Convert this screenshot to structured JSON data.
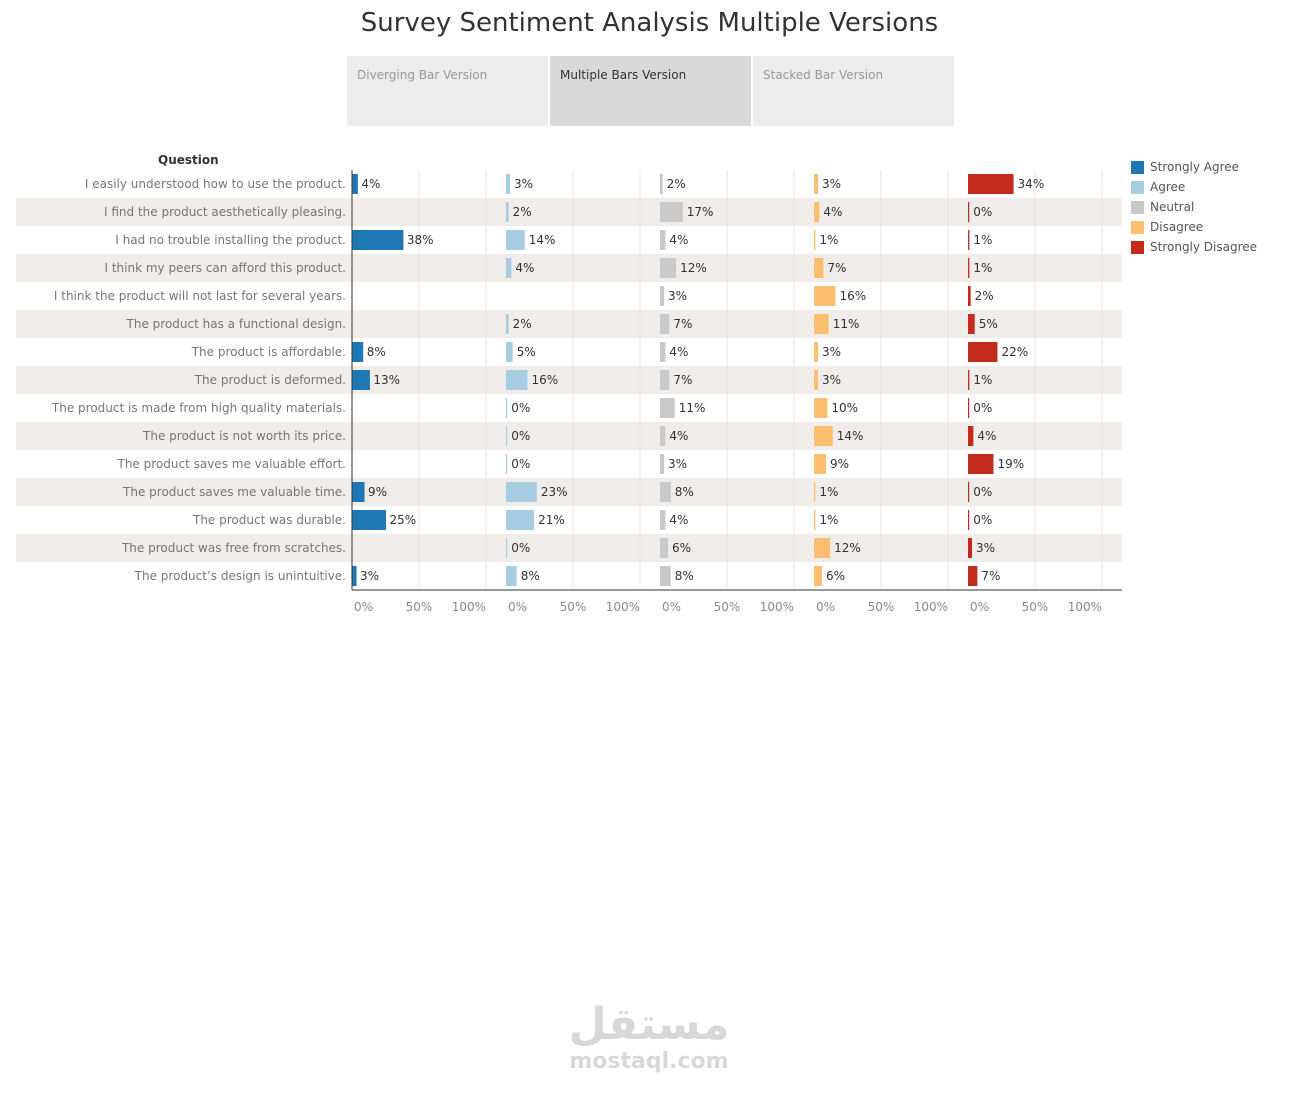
{
  "page": {
    "title": "Survey Sentiment Analysis Multiple Versions",
    "tabs": [
      {
        "label": "Diverging Bar Version",
        "active": false
      },
      {
        "label": "Multiple Bars Version",
        "active": true
      },
      {
        "label": "Stacked Bar Version",
        "active": false
      }
    ]
  },
  "watermark": {
    "arabic": "مستقل",
    "latin": "mostaql.com"
  },
  "chart_data": {
    "type": "bar",
    "row_header": "Question",
    "categories": [
      "I easily understood how to use the product.",
      "I find the product aesthetically pleasing.",
      "I had no trouble installing the product.",
      "I think my peers can afford this product.",
      "I think the product will not last for several years.",
      "The product has a functional design.",
      "The product is affordable.",
      "The product is deformed.",
      "The product is made from high quality materials.",
      "The product is not worth its price.",
      "The product saves me valuable effort.",
      "The product saves me valuable time.",
      "The product was durable.",
      "The product was free from scratches.",
      "The product’s design is unintuitive."
    ],
    "xlim": [
      0,
      100
    ],
    "xticks": [
      "0%",
      "50%",
      "100%"
    ],
    "series": [
      {
        "name": "Strongly Agree",
        "color": "#1f77b4",
        "values": [
          4,
          null,
          38,
          null,
          null,
          null,
          8,
          13,
          null,
          null,
          null,
          9,
          25,
          null,
          3
        ]
      },
      {
        "name": "Agree",
        "color": "#a6cde2",
        "values": [
          3,
          2,
          14,
          4,
          null,
          2,
          5,
          16,
          0,
          0,
          0,
          23,
          21,
          0,
          8
        ]
      },
      {
        "name": "Neutral",
        "color": "#c9c9c9",
        "values": [
          2,
          17,
          4,
          12,
          3,
          7,
          4,
          7,
          11,
          4,
          3,
          8,
          4,
          6,
          8
        ]
      },
      {
        "name": "Disagree",
        "color": "#fdbf6f",
        "values": [
          3,
          4,
          1,
          7,
          16,
          11,
          3,
          3,
          10,
          14,
          9,
          1,
          1,
          12,
          6
        ]
      },
      {
        "name": "Strongly Disagree",
        "color": "#c42b1c",
        "values": [
          34,
          0,
          1,
          1,
          2,
          5,
          22,
          1,
          0,
          4,
          19,
          0,
          0,
          3,
          7
        ]
      }
    ],
    "legend_position": "right",
    "grid": true
  }
}
